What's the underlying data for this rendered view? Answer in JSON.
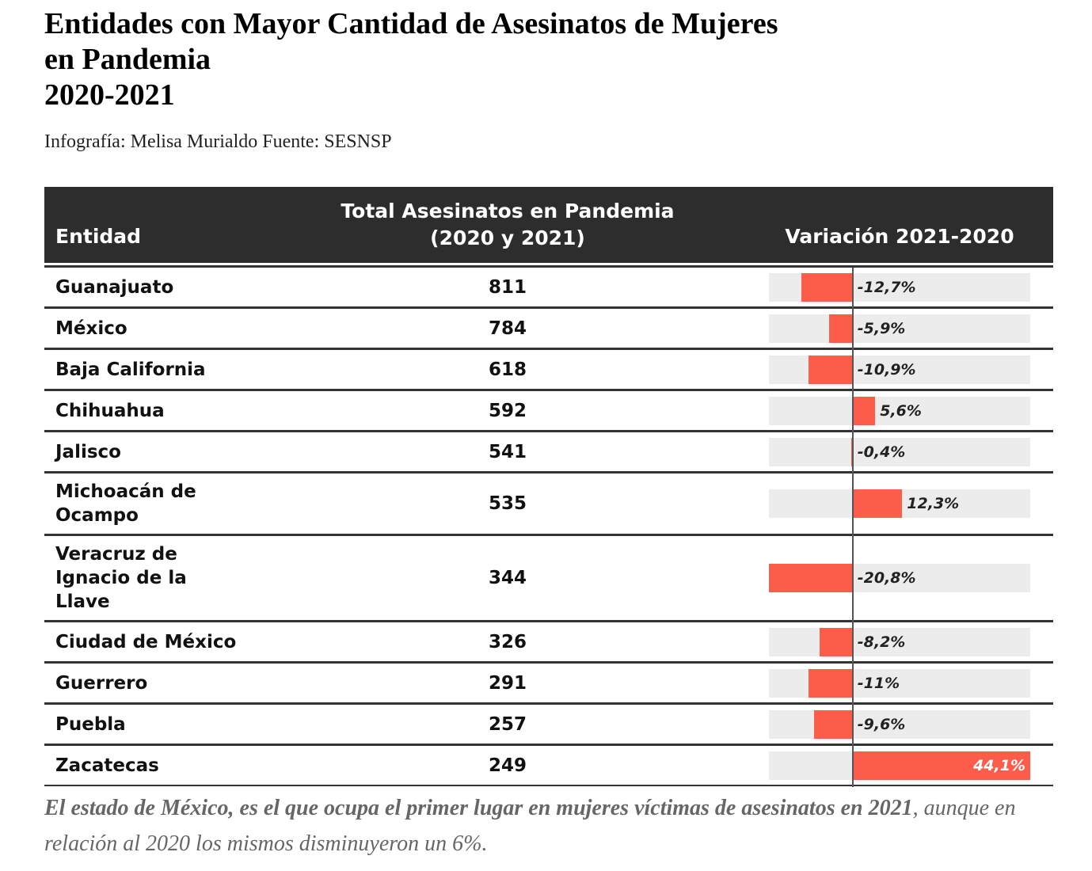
{
  "chart_data": {
    "type": "table-bar",
    "title": "Entidades con Mayor Cantidad de Asesinatos de Mujeres\nen Pandemia\n2020-2021",
    "subtitle": "Infografía: Melisa Murialdo Fuente: SESNSP",
    "columns": [
      "Entidad",
      "Total Asesinatos en Pandemia (2020 y 2021)",
      "Variación 2021-2020"
    ],
    "categories": [
      "Guanajuato",
      "México",
      "Baja California",
      "Chihuahua",
      "Jalisco",
      "Michoacán de Ocampo",
      "Veracruz de Ignacio de la Llave",
      "Ciudad de México",
      "Guerrero",
      "Puebla",
      "Zacatecas"
    ],
    "totals": [
      811,
      784,
      618,
      592,
      541,
      535,
      344,
      326,
      291,
      257,
      249
    ],
    "variation": {
      "values": [
        -12.7,
        -5.9,
        -10.9,
        5.6,
        -0.4,
        12.3,
        -20.8,
        -8.2,
        -11,
        -9.6,
        44.1
      ],
      "value_labels": [
        "-12,7%",
        "-5,9%",
        "-10,9%",
        "5,6%",
        "-0,4%",
        "12,3%",
        "-20,8%",
        "-8,2%",
        "-11%",
        "-9,6%",
        "44,1%"
      ],
      "color": "#fc5c4a"
    },
    "xlim": [
      -20.8,
      44.1
    ],
    "note_bold": "El estado de México, es el que ocupa el primer lugar en mujeres víctimas de asesinatos en 2021",
    "note": ", aunque en relación al 2020 los mismos disminuyeron un 6%."
  }
}
